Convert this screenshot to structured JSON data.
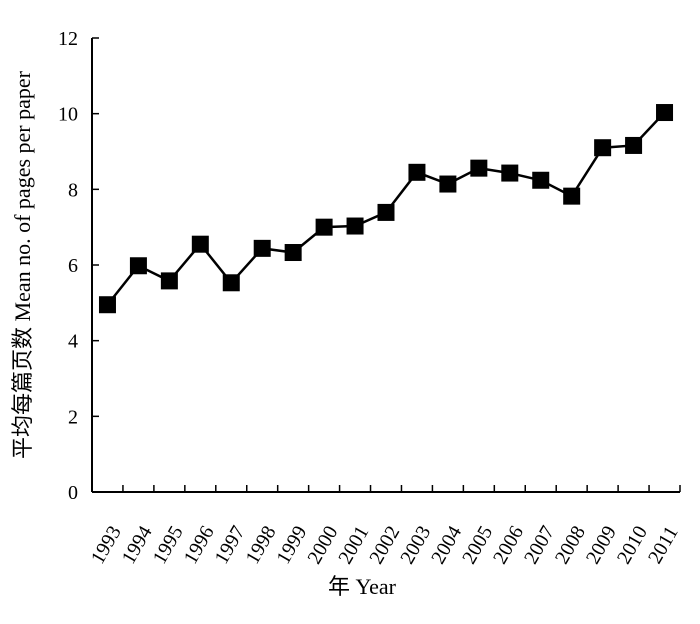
{
  "chart_data": {
    "type": "line",
    "xlabel": "年 Year",
    "ylabel": "平均每篇页数 Mean no. of pages per paper",
    "ylim": [
      0,
      12
    ],
    "yticks": [
      "0",
      "2",
      "4",
      "6",
      "8",
      "10",
      "12"
    ],
    "categories": [
      "1993",
      "1994",
      "1995",
      "1996",
      "1997",
      "1998",
      "1999",
      "2000",
      "2001",
      "2002",
      "2003",
      "2004",
      "2005",
      "2006",
      "2007",
      "2008",
      "2009",
      "2010",
      "2011"
    ],
    "series": [
      {
        "values": [
          4.95,
          5.98,
          5.58,
          6.55,
          5.53,
          6.44,
          6.33,
          7.0,
          7.03,
          7.39,
          8.45,
          8.14,
          8.56,
          8.43,
          8.24,
          7.82,
          9.1,
          9.16,
          10.03
        ],
        "color": "#000000",
        "marker": "square"
      }
    ],
    "grid": false,
    "legend": "none"
  }
}
